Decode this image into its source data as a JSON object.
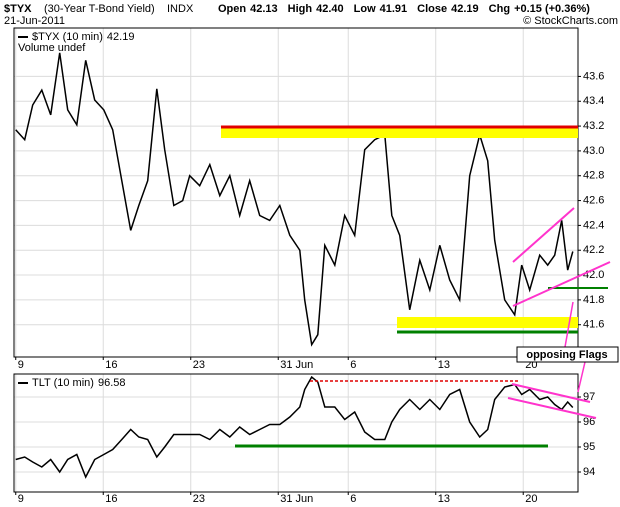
{
  "header": {
    "symbol": "$TYX",
    "name": "(30-Year T-Bond Yield)",
    "exchange": "INDX",
    "date": "21-Jun-2011",
    "quote": [
      {
        "label": "Open",
        "value": "42.13"
      },
      {
        "label": "High",
        "value": "42.40"
      },
      {
        "label": "Low",
        "value": "41.91"
      },
      {
        "label": "Close",
        "value": "42.19"
      },
      {
        "label": "Chg",
        "value": "+0.15 (+0.36%)"
      }
    ],
    "credit": "© StockCharts.com"
  },
  "annotation": "opposing Flags",
  "chart_data": [
    {
      "type": "line",
      "grid": true,
      "note": "Volume undef",
      "xlim": [
        -0.1,
        32.13
      ],
      "xticks": [
        {
          "value": 0,
          "label": "9"
        },
        {
          "value": 5,
          "label": "16"
        },
        {
          "value": 10,
          "label": "23"
        },
        {
          "value": 15,
          "label": "31 Jun"
        },
        {
          "value": 19,
          "label": "6"
        },
        {
          "value": 24,
          "label": "13"
        },
        {
          "value": 29,
          "label": "20"
        }
      ],
      "ylim": [
        41.34,
        43.99
      ],
      "yticks": [
        41.6,
        41.8,
        {
          "value": 42,
          "label": "42.0"
        },
        42.2,
        42.4,
        42.6,
        42.8,
        {
          "value": 43,
          "label": "43.0"
        },
        43.2,
        43.4,
        43.6
      ],
      "x": [
        0,
        0.51,
        0.97,
        1.49,
        2,
        2.51,
        2.97,
        3.49,
        4,
        4.51,
        5.03,
        5.54,
        6.06,
        6.57,
        7.03,
        7.54,
        8.06,
        8.51,
        9.03,
        9.54,
        9.94,
        10.51,
        11.09,
        11.66,
        12.23,
        12.8,
        13.37,
        13.94,
        14.51,
        15.09,
        15.66,
        16.23,
        16.51,
        16.91,
        17.26,
        17.66,
        18.23,
        18.8,
        19.37,
        19.94,
        20.51,
        21.09,
        21.49,
        21.94,
        22.51,
        23.09,
        23.66,
        24.23,
        24.8,
        25.37,
        25.94,
        26.51,
        26.97,
        27.37,
        27.94,
        28.51,
        28.91,
        29.37,
        29.94,
        30.4,
        30.8,
        31.2,
        31.54,
        31.83
      ],
      "series": [
        {
          "name": "$TYX (10 min)",
          "color": "#000000",
          "values": [
            43.17,
            43.09,
            43.37,
            43.49,
            43.29,
            43.79,
            43.33,
            43.21,
            43.73,
            43.41,
            43.33,
            43.17,
            42.76,
            42.36,
            42.56,
            42.76,
            43.5,
            43.01,
            42.56,
            42.6,
            42.8,
            42.72,
            42.89,
            42.64,
            42.8,
            42.48,
            42.76,
            42.48,
            42.44,
            42.56,
            42.32,
            42.2,
            41.8,
            41.44,
            41.52,
            42.24,
            42.08,
            42.48,
            42.32,
            43.01,
            43.09,
            43.13,
            42.48,
            42.32,
            41.72,
            42.12,
            41.88,
            42.24,
            41.96,
            41.8,
            42.8,
            43.13,
            42.92,
            42.28,
            41.8,
            41.68,
            42.08,
            41.88,
            42.16,
            42.08,
            42.16,
            42.44,
            42.04,
            42.19
          ]
        }
      ]
    },
    {
      "type": "line",
      "grid": true,
      "xlim": [
        -0.1,
        32.13
      ],
      "xticks": [
        {
          "value": 0,
          "label": "9"
        },
        {
          "value": 5,
          "label": "16"
        },
        {
          "value": 10,
          "label": "23"
        },
        {
          "value": 15,
          "label": "31 Jun"
        },
        {
          "value": 19,
          "label": "6"
        },
        {
          "value": 24,
          "label": "13"
        },
        {
          "value": 29,
          "label": "20"
        }
      ],
      "ylim": [
        93.2,
        97.92
      ],
      "yticks": [
        94,
        95,
        96,
        97
      ],
      "x": [
        0,
        0.51,
        0.97,
        1.49,
        2,
        2.51,
        2.97,
        3.49,
        4,
        4.51,
        5.03,
        5.54,
        6.06,
        6.57,
        7.03,
        7.54,
        8.06,
        8.51,
        9.03,
        9.54,
        9.94,
        10.51,
        11.09,
        11.66,
        12.23,
        12.8,
        13.37,
        13.94,
        14.51,
        15.09,
        15.66,
        16.23,
        16.51,
        16.91,
        17.26,
        17.66,
        18.23,
        18.8,
        19.37,
        19.94,
        20.51,
        21.09,
        21.49,
        21.94,
        22.51,
        23.09,
        23.66,
        24.23,
        24.8,
        25.37,
        25.94,
        26.51,
        26.97,
        27.37,
        27.94,
        28.51,
        28.91,
        29.37,
        29.94,
        30.4,
        30.8,
        31.2,
        31.54,
        31.83
      ],
      "series": [
        {
          "name": "TLT (10 min)",
          "color": "#000000",
          "values": [
            94.5,
            94.6,
            94.4,
            94.2,
            94.5,
            94.0,
            94.5,
            94.7,
            93.8,
            94.5,
            94.7,
            94.9,
            95.3,
            95.7,
            95.4,
            95.3,
            94.6,
            95.0,
            95.5,
            95.5,
            95.5,
            95.5,
            95.3,
            95.7,
            95.4,
            95.8,
            95.5,
            95.7,
            95.9,
            95.9,
            96.2,
            96.6,
            97.3,
            97.8,
            97.6,
            96.6,
            96.6,
            96.1,
            96.4,
            95.6,
            95.3,
            95.3,
            96.0,
            96.5,
            96.9,
            96.5,
            96.9,
            96.5,
            97.1,
            97.3,
            96.0,
            95.4,
            95.7,
            96.9,
            97.4,
            97.5,
            97.1,
            97.3,
            96.9,
            97.0,
            96.7,
            96.5,
            96.8,
            96.58
          ]
        }
      ]
    }
  ]
}
